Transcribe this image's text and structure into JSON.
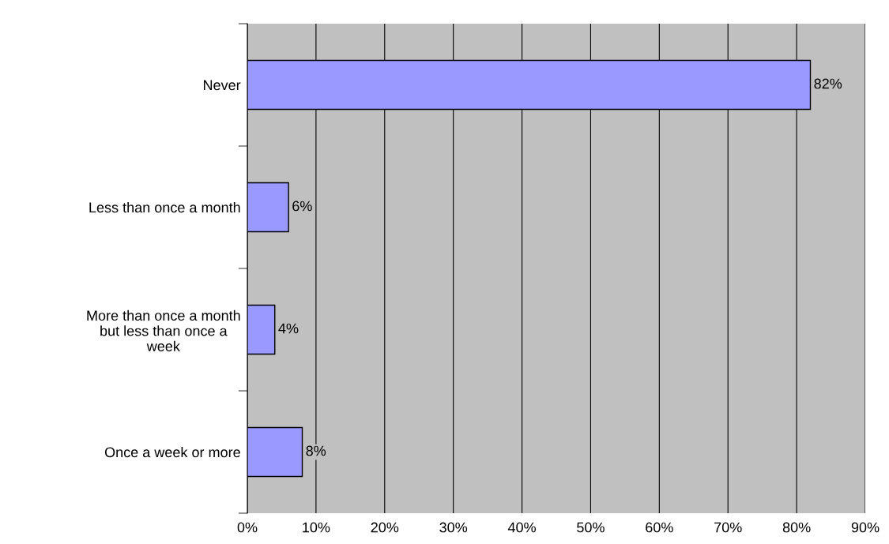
{
  "chart_data": {
    "type": "bar",
    "orientation": "horizontal",
    "categories": [
      "Never",
      "Less than once a month",
      "More than once a month\nbut less than once a\nweek",
      "Once a week or more"
    ],
    "values": [
      82,
      6,
      4,
      8
    ],
    "color": "#9999ff",
    "value_labels": [
      "82%",
      "6%",
      "4%",
      "8%"
    ],
    "xlim": [
      0,
      90
    ],
    "xticks": [
      {
        "value": 0,
        "label": "0%"
      },
      {
        "value": 10,
        "label": "10%"
      },
      {
        "value": 20,
        "label": "20%"
      },
      {
        "value": 30,
        "label": "30%"
      },
      {
        "value": 40,
        "label": "40%"
      },
      {
        "value": 50,
        "label": "50%"
      },
      {
        "value": 60,
        "label": "60%"
      },
      {
        "value": 70,
        "label": "70%"
      },
      {
        "value": 80,
        "label": "80%"
      },
      {
        "value": 90,
        "label": "90%"
      }
    ],
    "grid": "x"
  }
}
